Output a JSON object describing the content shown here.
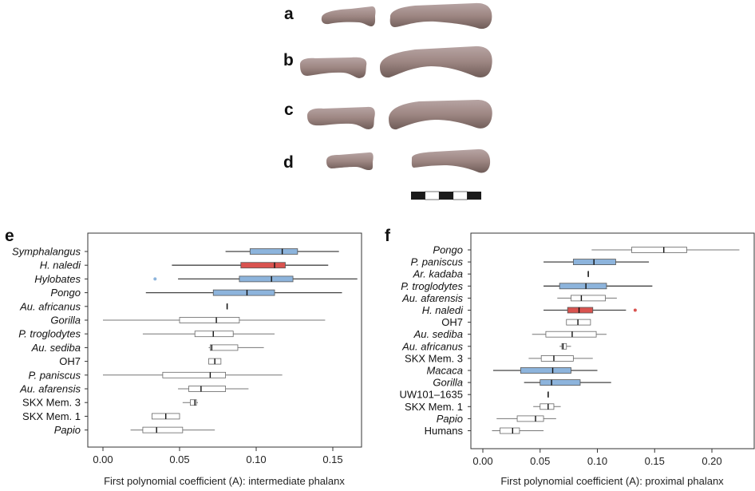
{
  "photo_labels": [
    "a",
    "b",
    "c",
    "d"
  ],
  "panel_labels": {
    "e": "e",
    "f": "f"
  },
  "colors": {
    "highlight": "#d9534f",
    "blue": "#8db4dc",
    "white_box": "#ffffff",
    "whisker": "#555555",
    "bone": "#9c8784"
  },
  "chart_data": [
    {
      "type": "boxplot",
      "orientation": "horizontal",
      "xlabel": "First polynomial coefficient (A): intermediate phalanx",
      "xlim": [
        -0.01,
        0.168
      ],
      "xticks": [
        "0.00",
        "0.05",
        "0.10",
        "0.15"
      ],
      "xtick_values": [
        0.0,
        0.05,
        0.1,
        0.15
      ],
      "grid": false,
      "groups": [
        {
          "name": "Symphalangus",
          "italic": true,
          "fill": "blue",
          "whisker_low": 0.08,
          "q1": 0.096,
          "median": 0.117,
          "q3": 0.127,
          "whisker_high": 0.154
        },
        {
          "name": "H. naledi",
          "italic": true,
          "fill": "red",
          "whisker_low": 0.045,
          "q1": 0.09,
          "median": 0.112,
          "q3": 0.119,
          "whisker_high": 0.147
        },
        {
          "name": "Hylobates",
          "italic": true,
          "fill": "blue",
          "whisker_low": 0.049,
          "q1": 0.089,
          "median": 0.11,
          "q3": 0.124,
          "whisker_high": 0.166,
          "outliers": [
            0.034
          ]
        },
        {
          "name": "Pongo",
          "italic": true,
          "fill": "blue",
          "whisker_low": 0.028,
          "q1": 0.072,
          "median": 0.094,
          "q3": 0.112,
          "whisker_high": 0.156
        },
        {
          "name": "Au. africanus",
          "italic": true,
          "fill": "white",
          "whisker_low": 0.081,
          "q1": 0.081,
          "median": 0.081,
          "q3": 0.081,
          "whisker_high": 0.081
        },
        {
          "name": "Gorilla",
          "italic": true,
          "fill": "white",
          "whisker_low": 0.0,
          "q1": 0.05,
          "median": 0.074,
          "q3": 0.089,
          "whisker_high": 0.145
        },
        {
          "name": "P. troglodytes",
          "italic": true,
          "fill": "white",
          "whisker_low": 0.026,
          "q1": 0.06,
          "median": 0.072,
          "q3": 0.085,
          "whisker_high": 0.112
        },
        {
          "name": "Au. sediba",
          "italic": true,
          "fill": "white",
          "whisker_low": 0.069,
          "q1": 0.07,
          "median": 0.071,
          "q3": 0.088,
          "whisker_high": 0.105
        },
        {
          "name": "OH7",
          "italic": false,
          "fill": "white",
          "whisker_low": 0.069,
          "q1": 0.069,
          "median": 0.073,
          "q3": 0.077,
          "whisker_high": 0.077
        },
        {
          "name": "P. paniscus",
          "italic": true,
          "fill": "white",
          "whisker_low": 0.0,
          "q1": 0.039,
          "median": 0.07,
          "q3": 0.08,
          "whisker_high": 0.117
        },
        {
          "name": "Au. afarensis",
          "italic": true,
          "fill": "white",
          "whisker_low": 0.049,
          "q1": 0.056,
          "median": 0.064,
          "q3": 0.08,
          "whisker_high": 0.095
        },
        {
          "name": "SKX Mem. 3",
          "italic": false,
          "fill": "white",
          "whisker_low": 0.052,
          "q1": 0.057,
          "median": 0.06,
          "q3": 0.061,
          "whisker_high": 0.062
        },
        {
          "name": "SKX Mem. 1",
          "italic": false,
          "fill": "white",
          "whisker_low": 0.032,
          "q1": 0.032,
          "median": 0.041,
          "q3": 0.05,
          "whisker_high": 0.05
        },
        {
          "name": "Papio",
          "italic": true,
          "fill": "white",
          "whisker_low": 0.018,
          "q1": 0.026,
          "median": 0.035,
          "q3": 0.052,
          "whisker_high": 0.073
        }
      ]
    },
    {
      "type": "boxplot",
      "orientation": "horizontal",
      "xlabel": "First polynomial coefficient (A): proximal phalanx",
      "xlim": [
        -0.01,
        0.237
      ],
      "xticks": [
        "0.00",
        "0.05",
        "0.10",
        "0.15",
        "0.20"
      ],
      "xtick_values": [
        0.0,
        0.05,
        0.1,
        0.15,
        0.2
      ],
      "grid": false,
      "groups": [
        {
          "name": "Pongo",
          "italic": true,
          "fill": "white",
          "whisker_low": 0.095,
          "q1": 0.13,
          "median": 0.158,
          "q3": 0.178,
          "whisker_high": 0.224
        },
        {
          "name": "P. paniscus",
          "italic": true,
          "fill": "blue",
          "whisker_low": 0.053,
          "q1": 0.079,
          "median": 0.097,
          "q3": 0.116,
          "whisker_high": 0.145
        },
        {
          "name": "Ar. kadaba",
          "italic": true,
          "fill": "white",
          "whisker_low": 0.092,
          "q1": 0.092,
          "median": 0.092,
          "q3": 0.092,
          "whisker_high": 0.092
        },
        {
          "name": "P. troglodytes",
          "italic": true,
          "fill": "blue",
          "whisker_low": 0.053,
          "q1": 0.067,
          "median": 0.09,
          "q3": 0.108,
          "whisker_high": 0.148
        },
        {
          "name": "Au. afarensis",
          "italic": true,
          "fill": "white",
          "whisker_low": 0.065,
          "q1": 0.077,
          "median": 0.086,
          "q3": 0.107,
          "whisker_high": 0.117
        },
        {
          "name": "H. naledi",
          "italic": true,
          "fill": "red",
          "whisker_low": 0.053,
          "q1": 0.074,
          "median": 0.084,
          "q3": 0.096,
          "whisker_high": 0.125,
          "outliers": [
            0.133
          ]
        },
        {
          "name": "OH7",
          "italic": false,
          "fill": "white",
          "whisker_low": 0.073,
          "q1": 0.073,
          "median": 0.083,
          "q3": 0.094,
          "whisker_high": 0.094
        },
        {
          "name": "Au. sediba",
          "italic": true,
          "fill": "white",
          "whisker_low": 0.043,
          "q1": 0.055,
          "median": 0.078,
          "q3": 0.099,
          "whisker_high": 0.108
        },
        {
          "name": "Au. africanus",
          "italic": true,
          "fill": "white",
          "whisker_low": 0.067,
          "q1": 0.069,
          "median": 0.07,
          "q3": 0.073,
          "whisker_high": 0.077
        },
        {
          "name": "SKX Mem. 3",
          "italic": false,
          "fill": "white",
          "whisker_low": 0.04,
          "q1": 0.051,
          "median": 0.062,
          "q3": 0.079,
          "whisker_high": 0.096
        },
        {
          "name": "Macaca",
          "italic": true,
          "fill": "blue",
          "whisker_low": 0.009,
          "q1": 0.033,
          "median": 0.061,
          "q3": 0.077,
          "whisker_high": 0.1
        },
        {
          "name": "Gorilla",
          "italic": true,
          "fill": "blue",
          "whisker_low": 0.036,
          "q1": 0.05,
          "median": 0.06,
          "q3": 0.085,
          "whisker_high": 0.112
        },
        {
          "name": "UW101–1635",
          "italic": false,
          "fill": "white",
          "whisker_low": 0.057,
          "q1": 0.057,
          "median": 0.057,
          "q3": 0.057,
          "whisker_high": 0.057
        },
        {
          "name": "SKX Mem. 1",
          "italic": false,
          "fill": "white",
          "whisker_low": 0.044,
          "q1": 0.05,
          "median": 0.057,
          "q3": 0.062,
          "whisker_high": 0.068
        },
        {
          "name": "Papio",
          "italic": true,
          "fill": "white",
          "whisker_low": 0.012,
          "q1": 0.03,
          "median": 0.046,
          "q3": 0.053,
          "whisker_high": 0.064
        },
        {
          "name": "Humans",
          "italic": false,
          "fill": "white",
          "whisker_low": 0.008,
          "q1": 0.015,
          "median": 0.026,
          "q3": 0.032,
          "whisker_high": 0.053
        }
      ]
    }
  ]
}
